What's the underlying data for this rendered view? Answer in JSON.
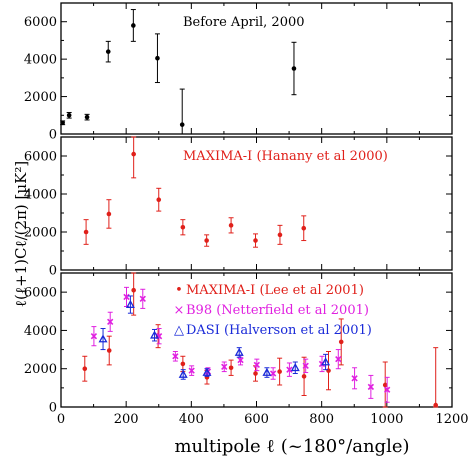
{
  "chart_data": {
    "type": "scatter",
    "xlabel": "multipole ℓ (~180°/angle)",
    "ylabel": "ℓ(ℓ+1)Cℓ/(2π)  [μK²]",
    "xlim": [
      0,
      1200
    ],
    "ylim": [
      0,
      7000
    ],
    "xticks": [
      0,
      200,
      400,
      600,
      800,
      1000,
      1200
    ],
    "yticks": [
      0,
      2000,
      4000,
      6000
    ],
    "colors": {
      "black": "#000000",
      "red": "#e0201a",
      "magenta": "#e020e0",
      "blue": "#1a2ad8"
    },
    "panels": [
      {
        "label": "Before April, 2000",
        "label_color": "#000000",
        "series": [
          {
            "color": "#000000",
            "marker": "dot",
            "points": [
              {
                "x": 5,
                "y": 600,
                "err": 100
              },
              {
                "x": 25,
                "y": 1000,
                "err": 150
              },
              {
                "x": 80,
                "y": 900,
                "err": 150
              },
              {
                "x": 145,
                "y": 4400,
                "err": 550
              },
              {
                "x": 222,
                "y": 5800,
                "err": 850
              },
              {
                "x": 296,
                "y": 4050,
                "err": 1300
              },
              {
                "x": 372,
                "y": 500,
                "err": 1900
              },
              {
                "x": 715,
                "y": 3500,
                "err": 1400
              }
            ]
          }
        ]
      },
      {
        "label": "MAXIMA-I (Hanany et al 2000)",
        "label_color": "#e0201a",
        "series": [
          {
            "color": "#e0201a",
            "marker": "dot",
            "points": [
              {
                "x": 77,
                "y": 2000,
                "err": 650
              },
              {
                "x": 147,
                "y": 2950,
                "err": 750
              },
              {
                "x": 223,
                "y": 6100,
                "err": 1250
              },
              {
                "x": 300,
                "y": 3700,
                "err": 600
              },
              {
                "x": 374,
                "y": 2250,
                "err": 400
              },
              {
                "x": 447,
                "y": 1550,
                "err": 300
              },
              {
                "x": 522,
                "y": 2350,
                "err": 400
              },
              {
                "x": 597,
                "y": 1550,
                "err": 350
              },
              {
                "x": 672,
                "y": 1850,
                "err": 500
              },
              {
                "x": 745,
                "y": 2200,
                "err": 650
              }
            ]
          }
        ]
      },
      {
        "legend": [
          {
            "label": "MAXIMA-I (Lee et al 2001)",
            "color": "#e0201a",
            "marker": "dot"
          },
          {
            "label": "B98 (Netterfield et al 2001)",
            "color": "#e020e0",
            "marker": "cross"
          },
          {
            "label": "DASI (Halverson et al 2001)",
            "color": "#1a2ad8",
            "marker": "triangle"
          }
        ],
        "series": [
          {
            "name": "MAXIMA-I (Lee et al 2001)",
            "color": "#e0201a",
            "marker": "dot",
            "points": [
              {
                "x": 73,
                "y": 2000,
                "err": 650
              },
              {
                "x": 148,
                "y": 2950,
                "err": 750
              },
              {
                "x": 223,
                "y": 6100,
                "err": 1300
              },
              {
                "x": 298,
                "y": 3700,
                "err": 600
              },
              {
                "x": 374,
                "y": 2250,
                "err": 400
              },
              {
                "x": 448,
                "y": 1550,
                "err": 350
              },
              {
                "x": 522,
                "y": 2050,
                "err": 400
              },
              {
                "x": 597,
                "y": 1750,
                "err": 400
              },
              {
                "x": 671,
                "y": 1850,
                "err": 700
              },
              {
                "x": 746,
                "y": 1600,
                "err": 1000
              },
              {
                "x": 821,
                "y": 1900,
                "err": 1000
              },
              {
                "x": 860,
                "y": 3400,
                "err": 1200
              },
              {
                "x": 995,
                "y": 1150,
                "err": 1200
              },
              {
                "x": 1150,
                "y": 100,
                "err": 3000
              }
            ]
          },
          {
            "name": "B98 (Netterfield et al 2001)",
            "color": "#e020e0",
            "marker": "cross",
            "points": [
              {
                "x": 101,
                "y": 3700,
                "err": 500
              },
              {
                "x": 151,
                "y": 4450,
                "err": 500
              },
              {
                "x": 201,
                "y": 5750,
                "err": 500
              },
              {
                "x": 251,
                "y": 5650,
                "err": 500
              },
              {
                "x": 301,
                "y": 3700,
                "err": 400
              },
              {
                "x": 351,
                "y": 2650,
                "err": 250
              },
              {
                "x": 401,
                "y": 1900,
                "err": 250
              },
              {
                "x": 451,
                "y": 1850,
                "err": 200
              },
              {
                "x": 501,
                "y": 2100,
                "err": 250
              },
              {
                "x": 551,
                "y": 2450,
                "err": 250
              },
              {
                "x": 601,
                "y": 2200,
                "err": 300
              },
              {
                "x": 651,
                "y": 1750,
                "err": 300
              },
              {
                "x": 701,
                "y": 1950,
                "err": 350
              },
              {
                "x": 751,
                "y": 2150,
                "err": 350
              },
              {
                "x": 801,
                "y": 2250,
                "err": 400
              },
              {
                "x": 851,
                "y": 2500,
                "err": 500
              },
              {
                "x": 901,
                "y": 1500,
                "err": 550
              },
              {
                "x": 951,
                "y": 1050,
                "err": 600
              },
              {
                "x": 1001,
                "y": 900,
                "err": 650
              }
            ]
          },
          {
            "name": "DASI (Halverson et al 2001)",
            "color": "#1a2ad8",
            "marker": "triangle",
            "points": [
              {
                "x": 129,
                "y": 3550,
                "err": 550
              },
              {
                "x": 213,
                "y": 5350,
                "err": 450
              },
              {
                "x": 287,
                "y": 3750,
                "err": 300
              },
              {
                "x": 375,
                "y": 1700,
                "err": 250
              },
              {
                "x": 448,
                "y": 1800,
                "err": 200
              },
              {
                "x": 547,
                "y": 2850,
                "err": 250
              },
              {
                "x": 632,
                "y": 1800,
                "err": 250
              },
              {
                "x": 719,
                "y": 2050,
                "err": 300
              },
              {
                "x": 812,
                "y": 2350,
                "err": 400
              }
            ]
          }
        ]
      }
    ]
  }
}
